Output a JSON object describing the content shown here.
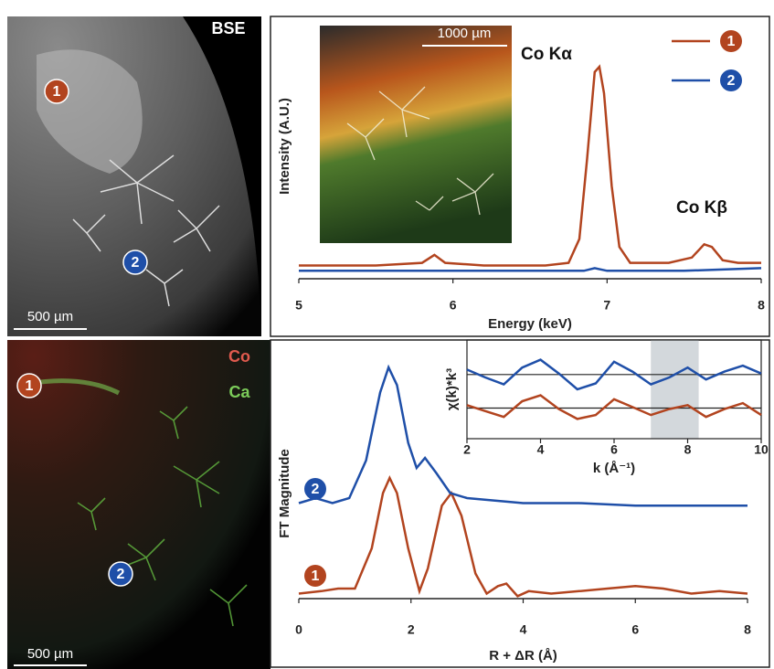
{
  "images": {
    "bse": {
      "label": "BSE",
      "scale": "500 µm",
      "markers": [
        "1",
        "2"
      ]
    },
    "map": {
      "legend": [
        "Co",
        "Ca"
      ],
      "scale": "500 µm",
      "markers": [
        "1",
        "2"
      ]
    },
    "inset_scale": "1000 µm"
  },
  "chart_data": [
    {
      "type": "line",
      "xlabel": "Energy (keV)",
      "ylabel": "Intensity (A.U.)",
      "annotations": [
        "Co Kα",
        "Co Kβ"
      ],
      "xlim": [
        5,
        8
      ],
      "xticks": [
        5,
        6,
        7,
        8
      ],
      "ylim": [
        0,
        100
      ],
      "series": [
        {
          "name": "1",
          "color": "#b2441f",
          "x": [
            5.0,
            5.5,
            5.8,
            5.88,
            5.95,
            6.2,
            6.6,
            6.75,
            6.82,
            6.87,
            6.92,
            6.95,
            6.98,
            7.03,
            7.08,
            7.15,
            7.4,
            7.55,
            7.63,
            7.68,
            7.75,
            7.85,
            8.0
          ],
          "values": [
            5,
            5,
            6,
            9,
            6,
            5,
            5,
            6,
            15,
            45,
            78,
            80,
            70,
            35,
            12,
            6,
            6,
            8,
            13,
            12,
            7,
            6,
            6
          ]
        },
        {
          "name": "2",
          "color": "#1f4fa8",
          "x": [
            5.0,
            5.5,
            6.0,
            6.5,
            6.85,
            6.92,
            7.0,
            7.5,
            8.0
          ],
          "values": [
            3,
            3,
            3,
            3,
            3,
            4,
            3,
            3,
            4
          ]
        }
      ]
    },
    {
      "type": "line",
      "xlabel": "R + ΔR (Å)",
      "ylabel": "FT Magnitude",
      "xlim": [
        0,
        8
      ],
      "xticks": [
        0,
        2,
        4,
        6,
        8
      ],
      "ylim": [
        0,
        100
      ],
      "series": [
        {
          "name": "1",
          "color": "#b2441f",
          "x": [
            0,
            0.4,
            0.7,
            1.0,
            1.3,
            1.5,
            1.62,
            1.75,
            1.95,
            2.15,
            2.3,
            2.55,
            2.72,
            2.9,
            3.15,
            3.35,
            3.55,
            3.7,
            3.9,
            4.1,
            4.5,
            5.0,
            5.5,
            6.0,
            6.5,
            7.0,
            7.5,
            8.0
          ],
          "values": [
            2,
            3,
            4,
            4,
            20,
            42,
            48,
            42,
            20,
            3,
            12,
            37,
            42,
            33,
            10,
            2,
            5,
            6,
            1,
            3,
            2,
            3,
            4,
            5,
            4,
            2,
            3,
            2
          ]
        },
        {
          "name": "2",
          "color": "#1f4fa8",
          "x": [
            0,
            0.3,
            0.6,
            0.9,
            1.2,
            1.45,
            1.6,
            1.75,
            1.95,
            2.1,
            2.25,
            2.45,
            2.7,
            3.0,
            3.5,
            4.0,
            5.0,
            6.0,
            7.0,
            8.0
          ],
          "values": [
            38,
            40,
            38,
            40,
            55,
            82,
            92,
            85,
            62,
            52,
            56,
            50,
            42,
            40,
            39,
            38,
            38,
            37,
            37,
            37
          ]
        }
      ]
    },
    {
      "type": "line",
      "xlabel": "k (Å⁻¹)",
      "ylabel": "χ(k)*k³",
      "xlim": [
        2,
        10
      ],
      "xticks": [
        2,
        4,
        6,
        8,
        10
      ],
      "ylim": [
        0,
        100
      ],
      "reference_lines": [
        65,
        31
      ],
      "shade": [
        7,
        8.3
      ],
      "series": [
        {
          "name": "1",
          "color": "#b2441f",
          "x": [
            2,
            2.5,
            3,
            3.5,
            4,
            4.5,
            5,
            5.5,
            6,
            6.5,
            7,
            7.5,
            8,
            8.5,
            9,
            9.5,
            10
          ],
          "values": [
            34,
            28,
            22,
            38,
            44,
            30,
            20,
            24,
            40,
            32,
            24,
            30,
            34,
            22,
            30,
            36,
            24
          ]
        },
        {
          "name": "2",
          "color": "#1f4fa8",
          "x": [
            2,
            2.5,
            3,
            3.5,
            4,
            4.5,
            5,
            5.5,
            6,
            6.5,
            7,
            7.5,
            8,
            8.5,
            9,
            9.5,
            10
          ],
          "values": [
            70,
            62,
            55,
            72,
            80,
            66,
            50,
            56,
            78,
            68,
            55,
            62,
            72,
            60,
            68,
            74,
            66
          ]
        }
      ]
    }
  ]
}
